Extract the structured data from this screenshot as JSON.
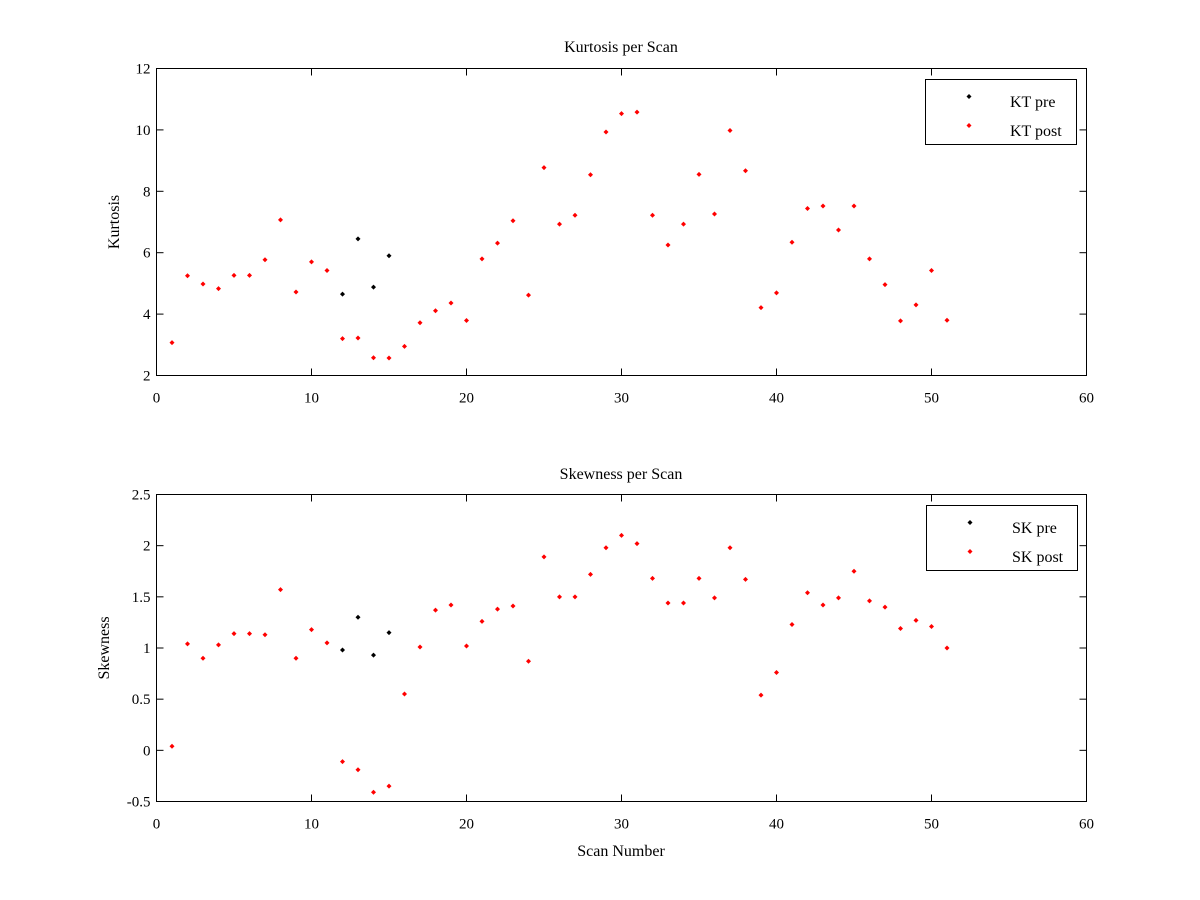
{
  "chart_data": [
    {
      "type": "scatter",
      "title": "Kurtosis per Scan",
      "xlabel": "",
      "ylabel": "Kurtosis",
      "xlim": [
        0,
        60
      ],
      "ylim": [
        2,
        12
      ],
      "xticks": [
        0,
        10,
        20,
        30,
        40,
        50,
        60
      ],
      "yticks": [
        2,
        4,
        6,
        8,
        10,
        12
      ],
      "grid": false,
      "legend_position": "top-right",
      "series": [
        {
          "name": "KT pre",
          "color": "#000000",
          "marker": "diamond",
          "x": [
            12,
            13,
            14,
            15
          ],
          "y": [
            4.65,
            6.45,
            4.88,
            5.9
          ]
        },
        {
          "name": "KT post",
          "color": "#ff0000",
          "marker": "diamond",
          "x": [
            1,
            2,
            3,
            4,
            5,
            6,
            7,
            8,
            9,
            10,
            11,
            12,
            13,
            14,
            15,
            16,
            17,
            18,
            19,
            20,
            21,
            22,
            23,
            24,
            25,
            26,
            27,
            28,
            29,
            30,
            31,
            32,
            33,
            34,
            35,
            36,
            37,
            38,
            39,
            40,
            41,
            42,
            43,
            44,
            45,
            46,
            47,
            48,
            49,
            50,
            51
          ],
          "y": [
            3.07,
            5.25,
            4.98,
            4.83,
            5.26,
            5.26,
            5.77,
            7.07,
            4.72,
            5.7,
            5.42,
            3.2,
            3.22,
            2.58,
            2.57,
            2.95,
            3.72,
            4.11,
            4.36,
            3.79,
            5.8,
            6.31,
            7.04,
            4.62,
            8.77,
            6.93,
            7.22,
            8.54,
            9.93,
            10.53,
            10.58,
            7.22,
            6.25,
            6.93,
            8.55,
            7.26,
            9.98,
            8.67,
            4.21,
            4.69,
            6.34,
            7.44,
            7.52,
            6.74,
            7.52,
            5.8,
            4.96,
            3.78,
            4.3,
            5.42,
            3.8
          ]
        }
      ]
    },
    {
      "type": "scatter",
      "title": "Skewness per Scan",
      "xlabel": "Scan Number",
      "ylabel": "Skewness",
      "xlim": [
        0,
        60
      ],
      "ylim": [
        -0.5,
        2.5
      ],
      "xticks": [
        0,
        10,
        20,
        30,
        40,
        50,
        60
      ],
      "yticks": [
        -0.5,
        0,
        0.5,
        1,
        1.5,
        2,
        2.5
      ],
      "grid": false,
      "legend_position": "top-right",
      "series": [
        {
          "name": "SK pre",
          "color": "#000000",
          "marker": "diamond",
          "x": [
            12,
            13,
            14,
            15
          ],
          "y": [
            0.98,
            1.3,
            0.93,
            1.15
          ]
        },
        {
          "name": "SK post",
          "color": "#ff0000",
          "marker": "diamond",
          "x": [
            1,
            2,
            3,
            4,
            5,
            6,
            7,
            8,
            9,
            10,
            11,
            12,
            13,
            14,
            15,
            16,
            17,
            18,
            19,
            20,
            21,
            22,
            23,
            24,
            25,
            26,
            27,
            28,
            29,
            30,
            31,
            32,
            33,
            34,
            35,
            36,
            37,
            38,
            39,
            40,
            41,
            42,
            43,
            44,
            45,
            46,
            47,
            48,
            49,
            50,
            51
          ],
          "y": [
            0.04,
            1.04,
            0.9,
            1.03,
            1.14,
            1.14,
            1.13,
            1.57,
            0.9,
            1.18,
            1.05,
            -0.11,
            -0.19,
            -0.41,
            -0.35,
            0.55,
            1.01,
            1.37,
            1.42,
            1.02,
            1.26,
            1.38,
            1.41,
            0.87,
            1.89,
            1.5,
            1.5,
            1.72,
            1.98,
            2.1,
            2.02,
            1.68,
            1.44,
            1.44,
            1.68,
            1.49,
            1.98,
            1.67,
            0.54,
            0.76,
            1.23,
            1.54,
            1.42,
            1.49,
            1.75,
            1.46,
            1.4,
            1.19,
            1.27,
            1.21,
            1.0
          ]
        }
      ]
    }
  ]
}
